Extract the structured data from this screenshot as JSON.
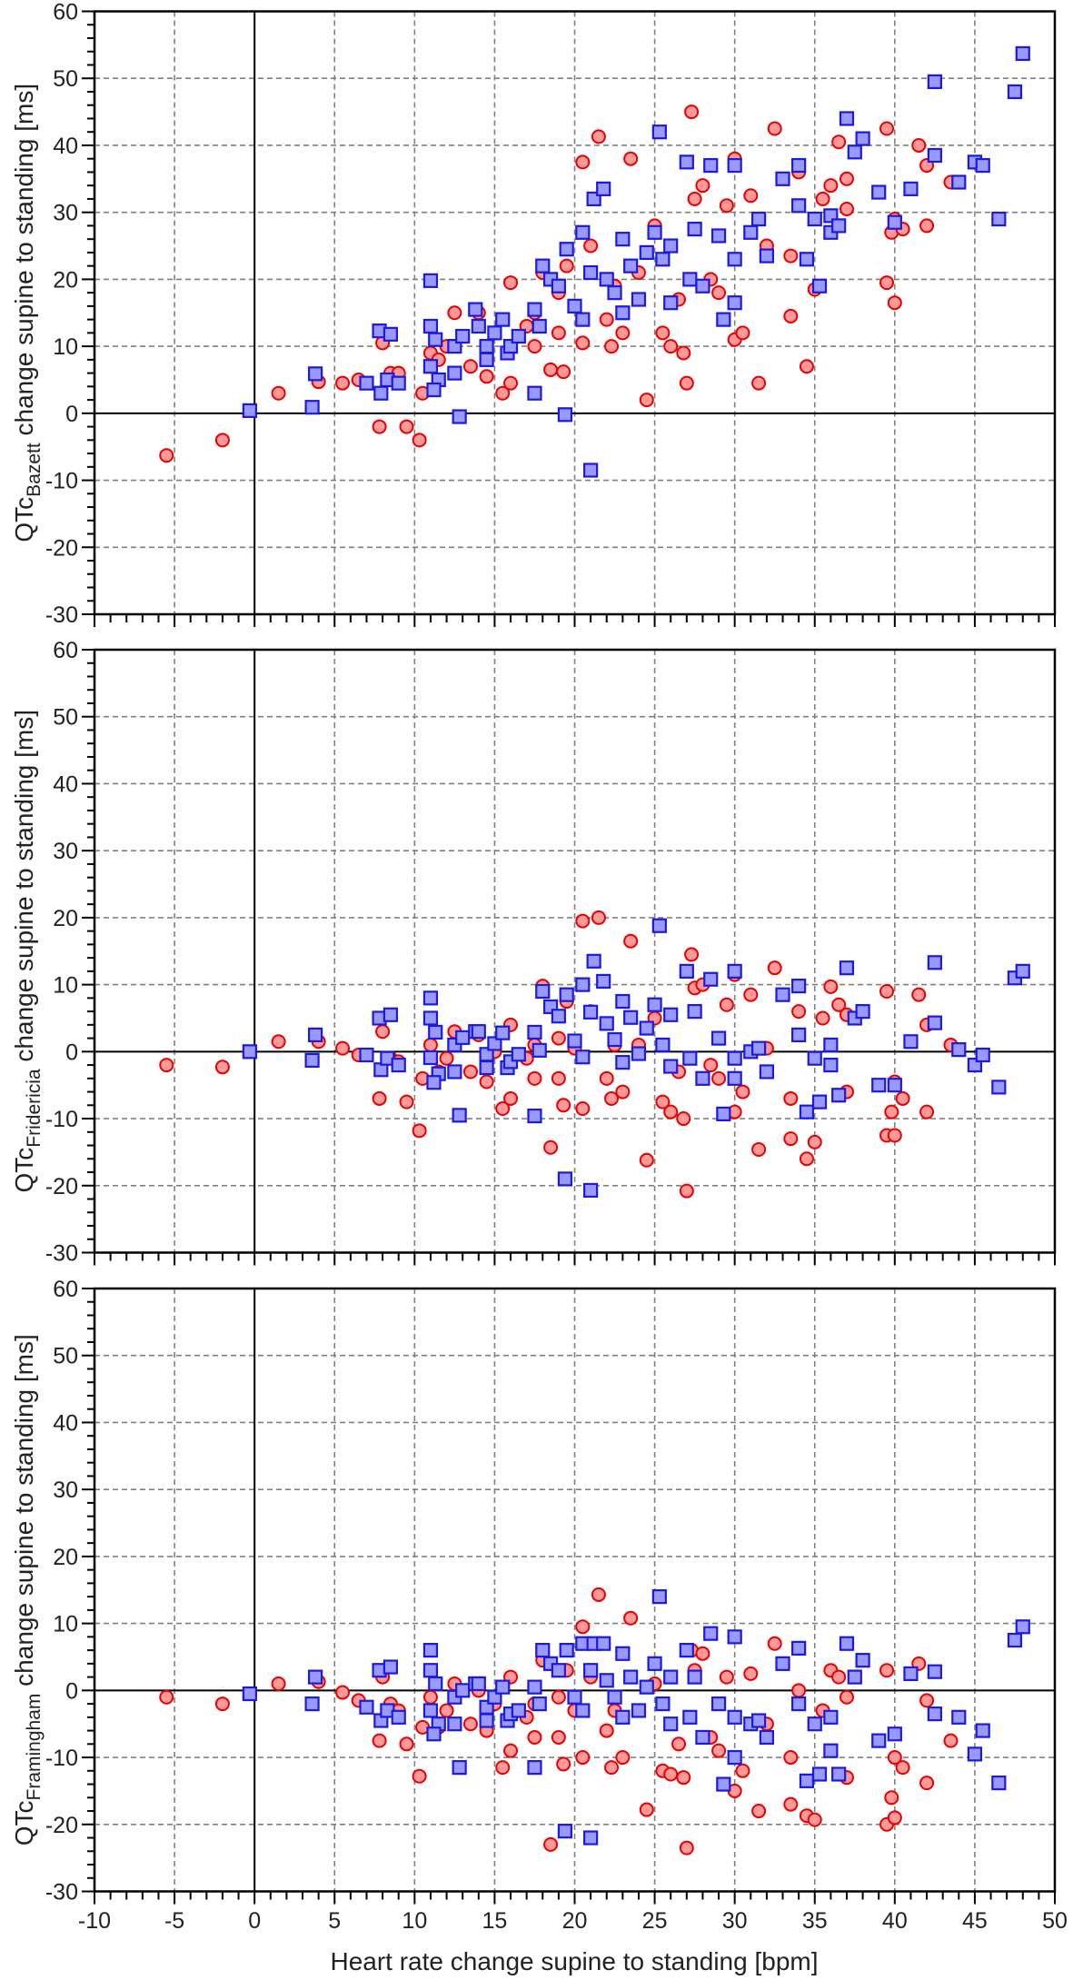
{
  "chart_data": {
    "type": "scatter",
    "xlabel": "Heart rate change supine to standing [bpm]",
    "xlim": [
      -10,
      50
    ],
    "xticks": [
      -10,
      -5,
      0,
      5,
      10,
      15,
      20,
      25,
      30,
      35,
      40,
      45,
      50
    ],
    "ylim": [
      -30,
      60
    ],
    "yticks": [
      60,
      50,
      40,
      30,
      20,
      10,
      0,
      -10,
      -20,
      -30
    ],
    "grid": true,
    "panels": [
      {
        "ylabel_main": "QTc",
        "ylabel_sub": "Bazett",
        "ylabel_rest": " change supine to standing [ms]"
      },
      {
        "ylabel_main": "QTc",
        "ylabel_sub": "Fridericia",
        "ylabel_rest": " change supine to standing [ms]"
      },
      {
        "ylabel_main": "QTc",
        "ylabel_sub": "Framingham",
        "ylabel_rest": " change supine to standing [ms]"
      }
    ],
    "series_columns": [
      "heart_rate_change",
      "qtc_bazett_change",
      "qtc_fridericia_change",
      "qtc_framingham_change"
    ],
    "series": [
      {
        "name": "circles",
        "marker": "circle",
        "fill": "#ff9999",
        "stroke": "#e60000",
        "points": [
          [
            -5.5,
            -6.3,
            -2,
            -1
          ],
          [
            -2,
            -4,
            -2.3,
            -2
          ],
          [
            1.5,
            3,
            1.5,
            1
          ],
          [
            4,
            4.7,
            1.5,
            1.3
          ],
          [
            5.5,
            4.5,
            0.5,
            -0.3
          ],
          [
            6.5,
            5,
            -0.5,
            -1.5
          ],
          [
            7.8,
            -2,
            -7,
            -7.5
          ],
          [
            8,
            10.5,
            3,
            2
          ],
          [
            8.5,
            6,
            -1,
            -2
          ],
          [
            9,
            6,
            -1.5,
            -3
          ],
          [
            9.5,
            -2,
            -7.5,
            -8
          ],
          [
            10.3,
            -4,
            -11.8,
            -12.8
          ],
          [
            10.5,
            3,
            -4,
            -5.5
          ],
          [
            11,
            9,
            1,
            -1
          ],
          [
            11.5,
            8,
            -3,
            -5.5
          ],
          [
            12,
            10,
            -1,
            -3
          ],
          [
            12.5,
            15,
            3,
            1
          ],
          [
            13.5,
            7,
            -3,
            -5
          ],
          [
            14,
            15,
            2.5,
            0
          ],
          [
            14.5,
            5.5,
            -4.5,
            -6
          ],
          [
            15,
            12,
            0,
            -2
          ],
          [
            15.5,
            3,
            -8.5,
            -11.5
          ],
          [
            16,
            4.5,
            -7,
            -9
          ],
          [
            16,
            19.5,
            4,
            2
          ],
          [
            17,
            13,
            -1,
            -4
          ],
          [
            17.5,
            10,
            -4,
            -7
          ],
          [
            17.5,
            15,
            1,
            -2
          ],
          [
            18,
            21,
            9.8,
            4.5
          ],
          [
            18.5,
            6.5,
            -14.3,
            -23
          ],
          [
            19,
            18,
            2,
            -1
          ],
          [
            19,
            12,
            -4,
            -7
          ],
          [
            19.3,
            6.2,
            -8,
            -11
          ],
          [
            19.5,
            22,
            7.5,
            3
          ],
          [
            20,
            16,
            0.5,
            -3
          ],
          [
            20.5,
            10.5,
            -8.5,
            -10
          ],
          [
            20.5,
            37.5,
            19.5,
            9.5
          ],
          [
            21,
            25,
            6,
            2
          ],
          [
            21.5,
            41.3,
            20,
            14.3
          ],
          [
            22,
            14,
            -4,
            -6
          ],
          [
            22.3,
            10,
            -7,
            -11.5
          ],
          [
            22.5,
            19,
            1,
            -3
          ],
          [
            23,
            12,
            -6,
            -10
          ],
          [
            23.5,
            38,
            16.5,
            10.8
          ],
          [
            24,
            21,
            1,
            -3
          ],
          [
            24.5,
            2,
            -16.2,
            -17.8
          ],
          [
            25,
            28,
            5,
            1
          ],
          [
            25.5,
            12,
            -7.5,
            -12
          ],
          [
            26,
            10,
            -9,
            -12.5
          ],
          [
            26.5,
            17,
            -3,
            -8
          ],
          [
            26.8,
            9,
            -10,
            -13
          ],
          [
            27,
            4.5,
            -20.8,
            -23.5
          ],
          [
            27.3,
            45,
            14.5,
            6
          ],
          [
            27.5,
            32,
            9.5,
            3
          ],
          [
            28,
            34,
            10,
            5.5
          ],
          [
            28.5,
            20,
            -2,
            -7
          ],
          [
            29,
            18,
            -4,
            -9
          ],
          [
            29.5,
            31,
            7,
            2
          ],
          [
            30,
            38,
            11.5,
            8
          ],
          [
            30,
            11,
            -9,
            -15
          ],
          [
            30.5,
            12,
            -6,
            -12
          ],
          [
            31,
            32.5,
            8.5,
            2.5
          ],
          [
            31.5,
            4.5,
            -14.6,
            -18
          ],
          [
            32,
            25,
            0.5,
            -5
          ],
          [
            32.5,
            42.5,
            12.5,
            7
          ],
          [
            33.5,
            14.5,
            -13,
            -17
          ],
          [
            33.5,
            23.5,
            -7,
            -10
          ],
          [
            34,
            36,
            6,
            0
          ],
          [
            34.5,
            7,
            -16,
            -18.7
          ],
          [
            35,
            18.5,
            -13.5,
            -19.3
          ],
          [
            35.5,
            32,
            5,
            -3
          ],
          [
            36,
            34,
            9.7,
            3
          ],
          [
            36.5,
            40.5,
            7,
            2
          ],
          [
            37,
            30.5,
            -6,
            -13
          ],
          [
            37,
            35,
            5.5,
            -1
          ],
          [
            39.5,
            19.5,
            -12.5,
            -20
          ],
          [
            39.5,
            42.5,
            9,
            3
          ],
          [
            39.8,
            27,
            -9,
            -16
          ],
          [
            40,
            16.5,
            -12.5,
            -19
          ],
          [
            40,
            29,
            -4.5,
            -10
          ],
          [
            40.5,
            27.5,
            -7,
            -11.5
          ],
          [
            41.5,
            40,
            8.5,
            4
          ],
          [
            42,
            37,
            4,
            -1.5
          ],
          [
            42,
            28,
            -9,
            -13.8
          ],
          [
            43.5,
            34.5,
            1,
            -7.5
          ]
        ]
      },
      {
        "name": "squares",
        "marker": "square",
        "fill": "#9999ff",
        "stroke": "#1a1ae0",
        "points": [
          [
            -0.3,
            0.4,
            0,
            -0.5
          ],
          [
            3.6,
            0.9,
            -1.3,
            -2
          ],
          [
            3.8,
            5.9,
            2.5,
            2
          ],
          [
            7.8,
            12.3,
            5,
            3
          ],
          [
            8.5,
            11.8,
            5.5,
            3.5
          ],
          [
            7.9,
            3,
            -2.7,
            -4.5
          ],
          [
            7,
            4.5,
            -0.5,
            -2.5
          ],
          [
            8.3,
            5,
            -1,
            -3
          ],
          [
            9,
            4.5,
            -2,
            -4
          ],
          [
            11,
            19.8,
            8,
            6
          ],
          [
            11,
            13,
            5,
            3
          ],
          [
            11.3,
            11,
            2.9,
            1
          ],
          [
            11,
            7,
            -0.9,
            -3
          ],
          [
            11.5,
            5,
            -3.3,
            -5
          ],
          [
            11.2,
            3.5,
            -4.6,
            -6.5
          ],
          [
            12.8,
            -0.5,
            -9.5,
            -11.5
          ],
          [
            12.5,
            6,
            -3,
            -5
          ],
          [
            12.5,
            10,
            1,
            -1
          ],
          [
            13,
            11.5,
            2.1,
            0
          ],
          [
            13.8,
            15.5,
            3,
            1
          ],
          [
            14,
            13,
            3,
            1
          ],
          [
            14.5,
            10,
            -0.4,
            -2.5
          ],
          [
            14.5,
            8,
            -2.4,
            -4.5
          ],
          [
            15,
            12,
            1.2,
            -1
          ],
          [
            15.5,
            14,
            2.8,
            0.5
          ],
          [
            15.8,
            9,
            -2.4,
            -4.5
          ],
          [
            16,
            10,
            -1.5,
            -3.5
          ],
          [
            16.5,
            11.5,
            -0.4,
            -3
          ],
          [
            17.5,
            3,
            -9.6,
            -11.5
          ],
          [
            17.5,
            15.5,
            2.9,
            0.5
          ],
          [
            17.8,
            13,
            0.2,
            -2
          ],
          [
            18,
            22,
            9,
            6
          ],
          [
            18.5,
            20,
            6.7,
            4
          ],
          [
            19,
            19,
            5.3,
            3
          ],
          [
            19.4,
            -0.2,
            -19,
            -21
          ],
          [
            19.5,
            24.5,
            8.5,
            6
          ],
          [
            20,
            16,
            1.6,
            -1
          ],
          [
            20.5,
            14,
            -0.8,
            -3
          ],
          [
            20.5,
            27,
            10,
            7
          ],
          [
            21,
            21,
            5.9,
            3
          ],
          [
            21,
            -8.5,
            -20.7,
            -22
          ],
          [
            21.2,
            32,
            13.5,
            7
          ],
          [
            21.8,
            33.5,
            10.5,
            7
          ],
          [
            22,
            20,
            4.2,
            1.5
          ],
          [
            22.5,
            18,
            1.8,
            -1
          ],
          [
            23,
            26,
            7.5,
            5.5
          ],
          [
            23,
            15,
            -1.6,
            -4
          ],
          [
            23.5,
            22,
            5.1,
            2
          ],
          [
            24,
            17,
            -0.3,
            -3
          ],
          [
            24.5,
            24,
            3.5,
            0.5
          ],
          [
            25,
            27,
            7,
            4
          ],
          [
            25.3,
            42,
            18.8,
            14
          ],
          [
            25.5,
            23,
            1,
            -2
          ],
          [
            26,
            16.5,
            -2.2,
            -5
          ],
          [
            26,
            25,
            5.5,
            2
          ],
          [
            27,
            37.5,
            12,
            6
          ],
          [
            27.2,
            20,
            -1,
            -4
          ],
          [
            27.5,
            27.5,
            6,
            2
          ],
          [
            28,
            19,
            -4,
            -7
          ],
          [
            28.5,
            37,
            10.8,
            8.5
          ],
          [
            29,
            26.5,
            2,
            -2
          ],
          [
            29.3,
            14,
            -9.3,
            -14
          ],
          [
            30,
            16.5,
            -4,
            -10
          ],
          [
            30,
            23,
            -1,
            -4
          ],
          [
            30,
            37,
            12,
            8
          ],
          [
            31,
            27,
            0,
            -5
          ],
          [
            31.5,
            29,
            0.5,
            -4.5
          ],
          [
            32,
            23.5,
            -3,
            -7
          ],
          [
            33,
            35,
            8.5,
            4
          ],
          [
            34,
            37,
            9.8,
            6.3
          ],
          [
            34,
            31,
            2.5,
            -2
          ],
          [
            34.5,
            23,
            -9,
            -13.5
          ],
          [
            35,
            29,
            -1,
            -5
          ],
          [
            35.3,
            19,
            -7.5,
            -12.5
          ],
          [
            36,
            27,
            -2,
            -9
          ],
          [
            36,
            29.5,
            1,
            -4
          ],
          [
            36.5,
            28,
            -6.5,
            -12.5
          ],
          [
            37,
            44,
            12.5,
            7
          ],
          [
            37.5,
            39,
            5,
            2
          ],
          [
            38,
            41,
            6,
            4.5
          ],
          [
            39,
            33,
            -5,
            -7.5
          ],
          [
            40,
            28.5,
            -5,
            -6.5
          ],
          [
            41,
            33.5,
            1.5,
            2.5
          ],
          [
            42.5,
            49.5,
            13.3,
            2.8
          ],
          [
            42.5,
            38.5,
            4.3,
            -3.5
          ],
          [
            44,
            34.5,
            0.3,
            -4
          ],
          [
            45,
            37.5,
            -2,
            -9.5
          ],
          [
            45.5,
            37,
            -0.5,
            -6
          ],
          [
            46.5,
            29,
            -5.3,
            -13.8
          ],
          [
            47.5,
            48,
            11,
            7.5
          ],
          [
            48,
            53.7,
            12,
            9.5
          ]
        ]
      }
    ]
  }
}
